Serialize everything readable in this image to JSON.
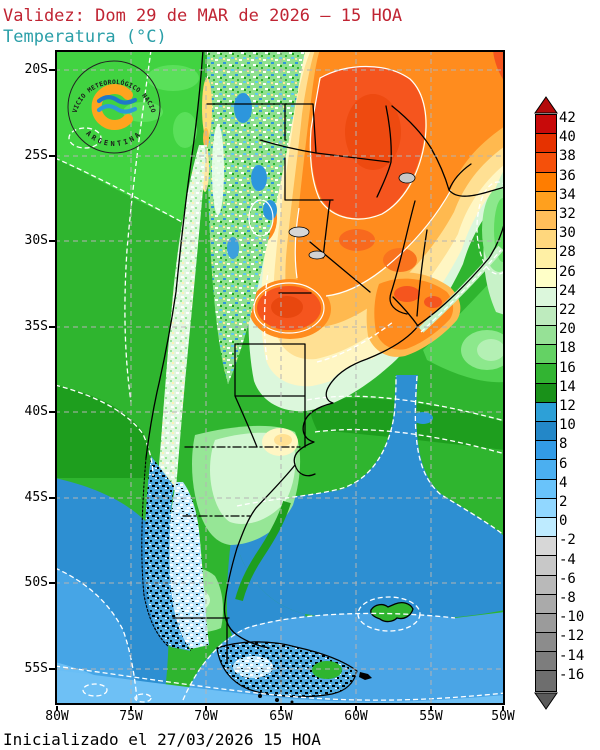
{
  "header": {
    "validity": "Validez: Dom 29 de MAR de 2026 — 15 HOA",
    "variable": "Temperatura (°C)"
  },
  "footer": {
    "initialized": "Inicializado el 27/03/2026 15 HOA"
  },
  "colors": {
    "title_text": "#C02433",
    "subtitle_text": "#2B9FA8",
    "axis_text": "#000000",
    "graticule": "#B4B4B4",
    "frame": "#000000"
  },
  "map": {
    "lat_labels": [
      "20S",
      "25S",
      "30S",
      "35S",
      "40S",
      "45S",
      "50S",
      "55S"
    ],
    "lon_labels": [
      "80W",
      "75W",
      "70W",
      "65W",
      "60W",
      "55W",
      "50W"
    ],
    "logo": {
      "arc_top": "SERVICIO METEOROLÓGICO NACIONAL",
      "arc_bottom": "ARGENTINA",
      "ring_color": "#FFA41E",
      "wave_dark": "#1E78C8",
      "wave_light": "#2D9BD7"
    }
  },
  "colorbar": {
    "unit": "°C",
    "tick_labels": [
      "42",
      "40",
      "38",
      "36",
      "34",
      "32",
      "30",
      "28",
      "26",
      "24",
      "22",
      "20",
      "18",
      "16",
      "14",
      "12",
      "10",
      "8",
      "6",
      "4",
      "2",
      "0",
      "-2",
      "-4",
      "-6",
      "-8",
      "-10",
      "-12",
      "-14",
      "-16"
    ],
    "cell_colors": [
      "#C80A0A",
      "#E63200",
      "#F5500A",
      "#FF7D00",
      "#FFA01E",
      "#FFBE5A",
      "#FFD77D",
      "#FFF0A5",
      "#FFFFC8",
      "#DCF7DC",
      "#BEEBBE",
      "#96E196",
      "#64D264",
      "#32B432",
      "#199119",
      "#2DA0D7",
      "#2387C8",
      "#329BE6",
      "#4BAFF0",
      "#69C3FA",
      "#91D7FF",
      "#BEEBFF",
      "#D7D7D7",
      "#C8C8C8",
      "#B9B9B9",
      "#AAAAAA",
      "#9B9B9B",
      "#8C8C8C",
      "#7D7D7D",
      "#6E6E6E"
    ],
    "arrow_top_color": "#B40A0A",
    "arrow_bottom_color": "#5A5A5A"
  }
}
